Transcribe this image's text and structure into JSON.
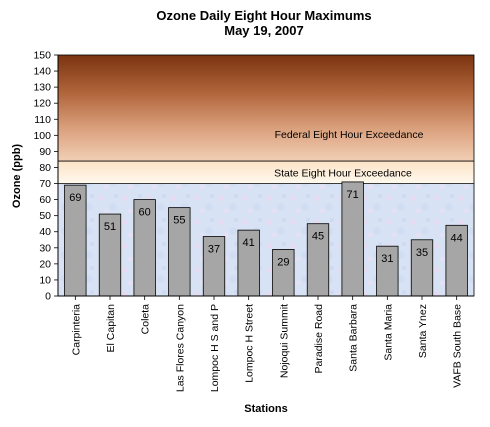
{
  "chart_data": {
    "type": "bar",
    "title": "Ozone Daily Eight Hour Maximums",
    "subtitle": "May 19, 2007",
    "xlabel": "Stations",
    "ylabel": "Ozone (ppb)",
    "ylim": [
      0,
      150
    ],
    "yticks": [
      0,
      10,
      20,
      30,
      40,
      50,
      60,
      70,
      80,
      90,
      100,
      110,
      120,
      130,
      140,
      150
    ],
    "categories": [
      "Carpinteria",
      "El Capitan",
      "Coleta",
      "Las Flores Canyon",
      "Lompoc H S and P",
      "Lompoc H Street",
      "Nojoqui Summit",
      "Paradise Road",
      "Santa Barbara",
      "Santa Maria",
      "Santa Ynez",
      "VAFB South Base"
    ],
    "values": [
      69,
      51,
      60,
      55,
      37,
      41,
      29,
      45,
      71,
      31,
      35,
      44
    ],
    "thresholds": [
      {
        "label": "State Eight Hour Exceedance",
        "from": 70,
        "to": 84
      },
      {
        "label": "Federal Eight Hour Exceedance",
        "from": 84,
        "to": 150
      }
    ],
    "colors": {
      "bar": "#a6a6a6",
      "bar_edge": "#000000",
      "federal_band_top": "#7a3410",
      "federal_band_bottom": "#efc9ad",
      "state_band_top": "#fbe7cf",
      "state_band_bottom": "#fff8ea",
      "background": "#d9e3f5"
    },
    "grid": false,
    "legend": "none"
  }
}
